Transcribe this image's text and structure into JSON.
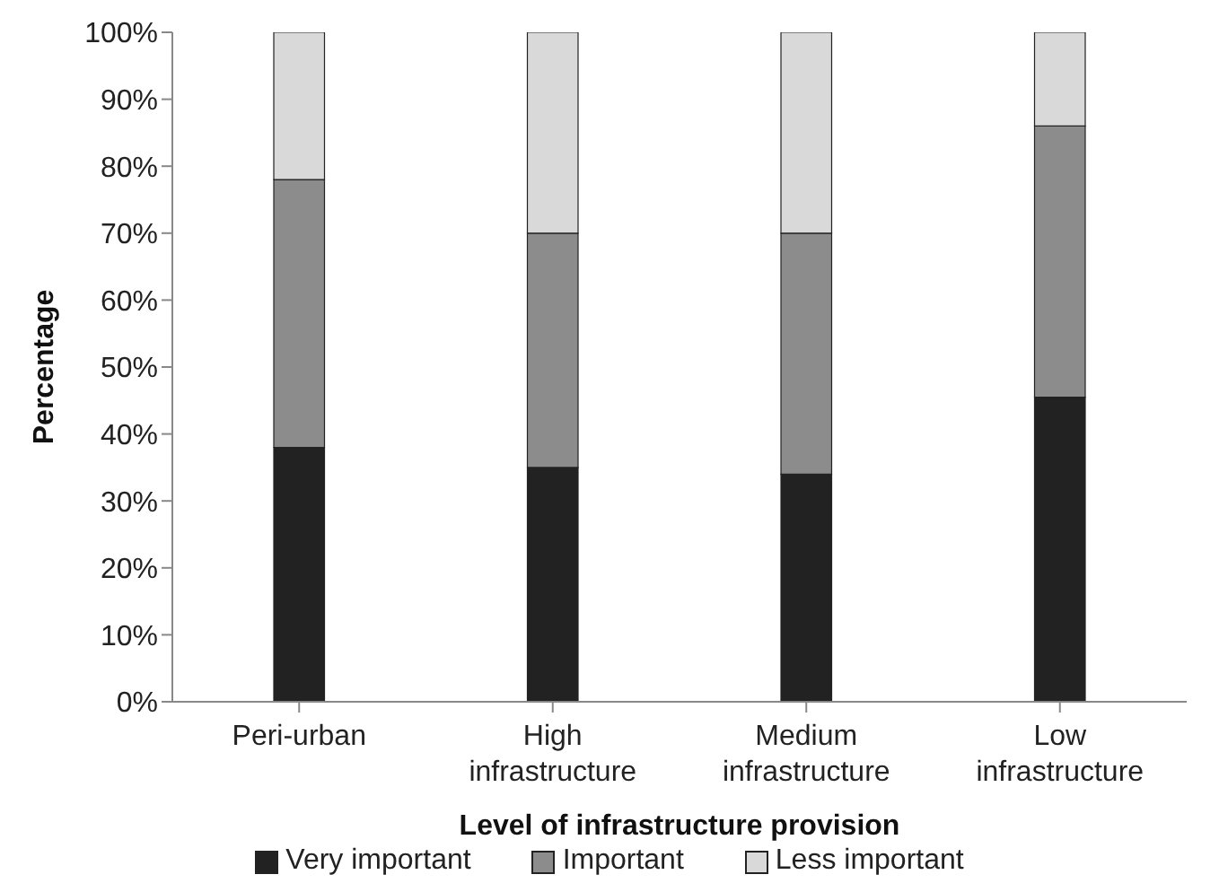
{
  "chart_data": {
    "type": "bar",
    "stacked": true,
    "xlabel": "Level of infrastructure provision",
    "ylabel": "Percentage",
    "categories": [
      "Peri-urban",
      "High infrastructure",
      "Medium infrastructure",
      "Low infrastructure"
    ],
    "series": [
      {
        "name": "Very important",
        "color": "#222222",
        "values": [
          38,
          35,
          34,
          45.5
        ]
      },
      {
        "name": "Important",
        "color": "#8c8c8c",
        "values": [
          40,
          35,
          36,
          40.5
        ]
      },
      {
        "name": "Less important",
        "color": "#d9d9d9",
        "values": [
          22,
          30,
          30,
          14
        ]
      }
    ],
    "ylim": [
      0,
      100
    ],
    "yticks": [
      {
        "value": 0,
        "label": "0%"
      },
      {
        "value": 10,
        "label": "10%"
      },
      {
        "value": 20,
        "label": "20%"
      },
      {
        "value": 30,
        "label": "30%"
      },
      {
        "value": 40,
        "label": "40%"
      },
      {
        "value": 50,
        "label": "50%"
      },
      {
        "value": 60,
        "label": "60%"
      },
      {
        "value": 70,
        "label": "70%"
      },
      {
        "value": 80,
        "label": "80%"
      },
      {
        "value": 90,
        "label": "90%"
      },
      {
        "value": 100,
        "label": "100%"
      }
    ],
    "grid": false,
    "legend": "bottom"
  }
}
